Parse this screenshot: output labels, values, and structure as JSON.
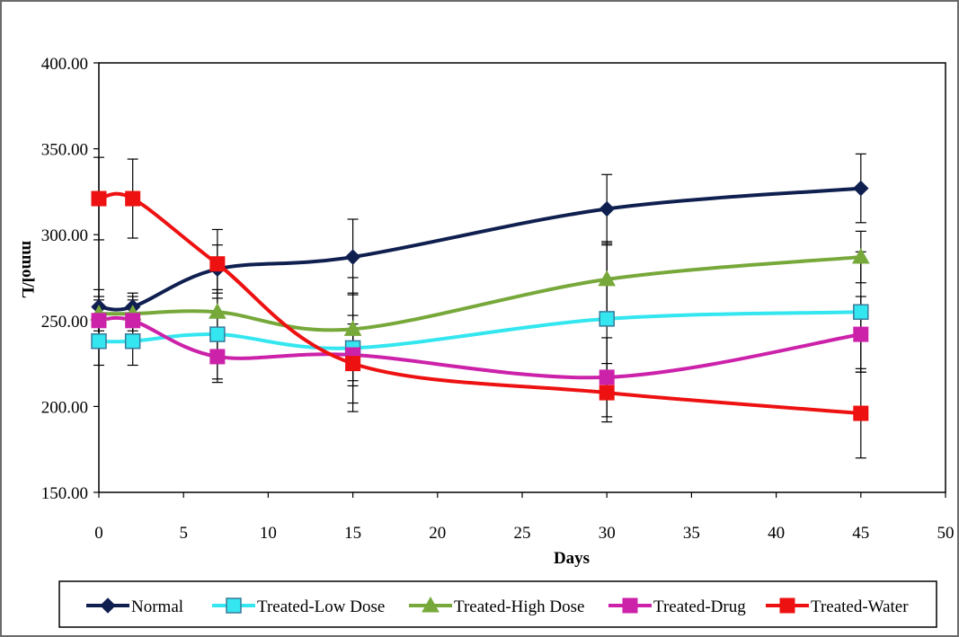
{
  "chart_data": {
    "type": "line",
    "title": "",
    "xlabel": "Days",
    "ylabel": "mmol/L",
    "xlim": [
      0,
      50
    ],
    "ylim": [
      150,
      400
    ],
    "x_ticks": [
      "0",
      "5",
      "10",
      "15",
      "20",
      "25",
      "30",
      "35",
      "40",
      "45",
      "50"
    ],
    "y_ticks": [
      "150.00",
      "200.00",
      "250.00",
      "300.00",
      "350.00",
      "400.00"
    ],
    "grid": false,
    "legend_position": "bottom",
    "x": [
      0,
      2,
      7,
      15,
      30,
      45
    ],
    "series": [
      {
        "name": "Normal",
        "color": "#0f1f4f",
        "marker": "diamond",
        "values": [
          258,
          258,
          280,
          287,
          315,
          327
        ],
        "error": [
          10,
          8,
          14,
          22,
          20,
          20
        ]
      },
      {
        "name": "Treated-Low Dose",
        "color": "#33e6f0",
        "marker": "square-open",
        "values": [
          238,
          238,
          242,
          234,
          251,
          255
        ],
        "error": [
          14,
          14,
          26,
          32,
          43,
          35
        ]
      },
      {
        "name": "Treated-High Dose",
        "color": "#77a83a",
        "marker": "triangle",
        "values": [
          254,
          254,
          255,
          245,
          274,
          287
        ],
        "error": [
          10,
          10,
          26,
          30,
          22,
          15
        ]
      },
      {
        "name": "Treated-Drug",
        "color": "#cc22aa",
        "marker": "square",
        "values": [
          250,
          250,
          229,
          230,
          217,
          242
        ],
        "error": [
          12,
          12,
          15,
          18,
          23,
          22
        ]
      },
      {
        "name": "Treated-Water",
        "color": "#ee1111",
        "marker": "square",
        "values": [
          321,
          321,
          283,
          225,
          208,
          196
        ],
        "error": [
          24,
          23,
          20,
          28,
          17,
          26
        ]
      }
    ]
  }
}
